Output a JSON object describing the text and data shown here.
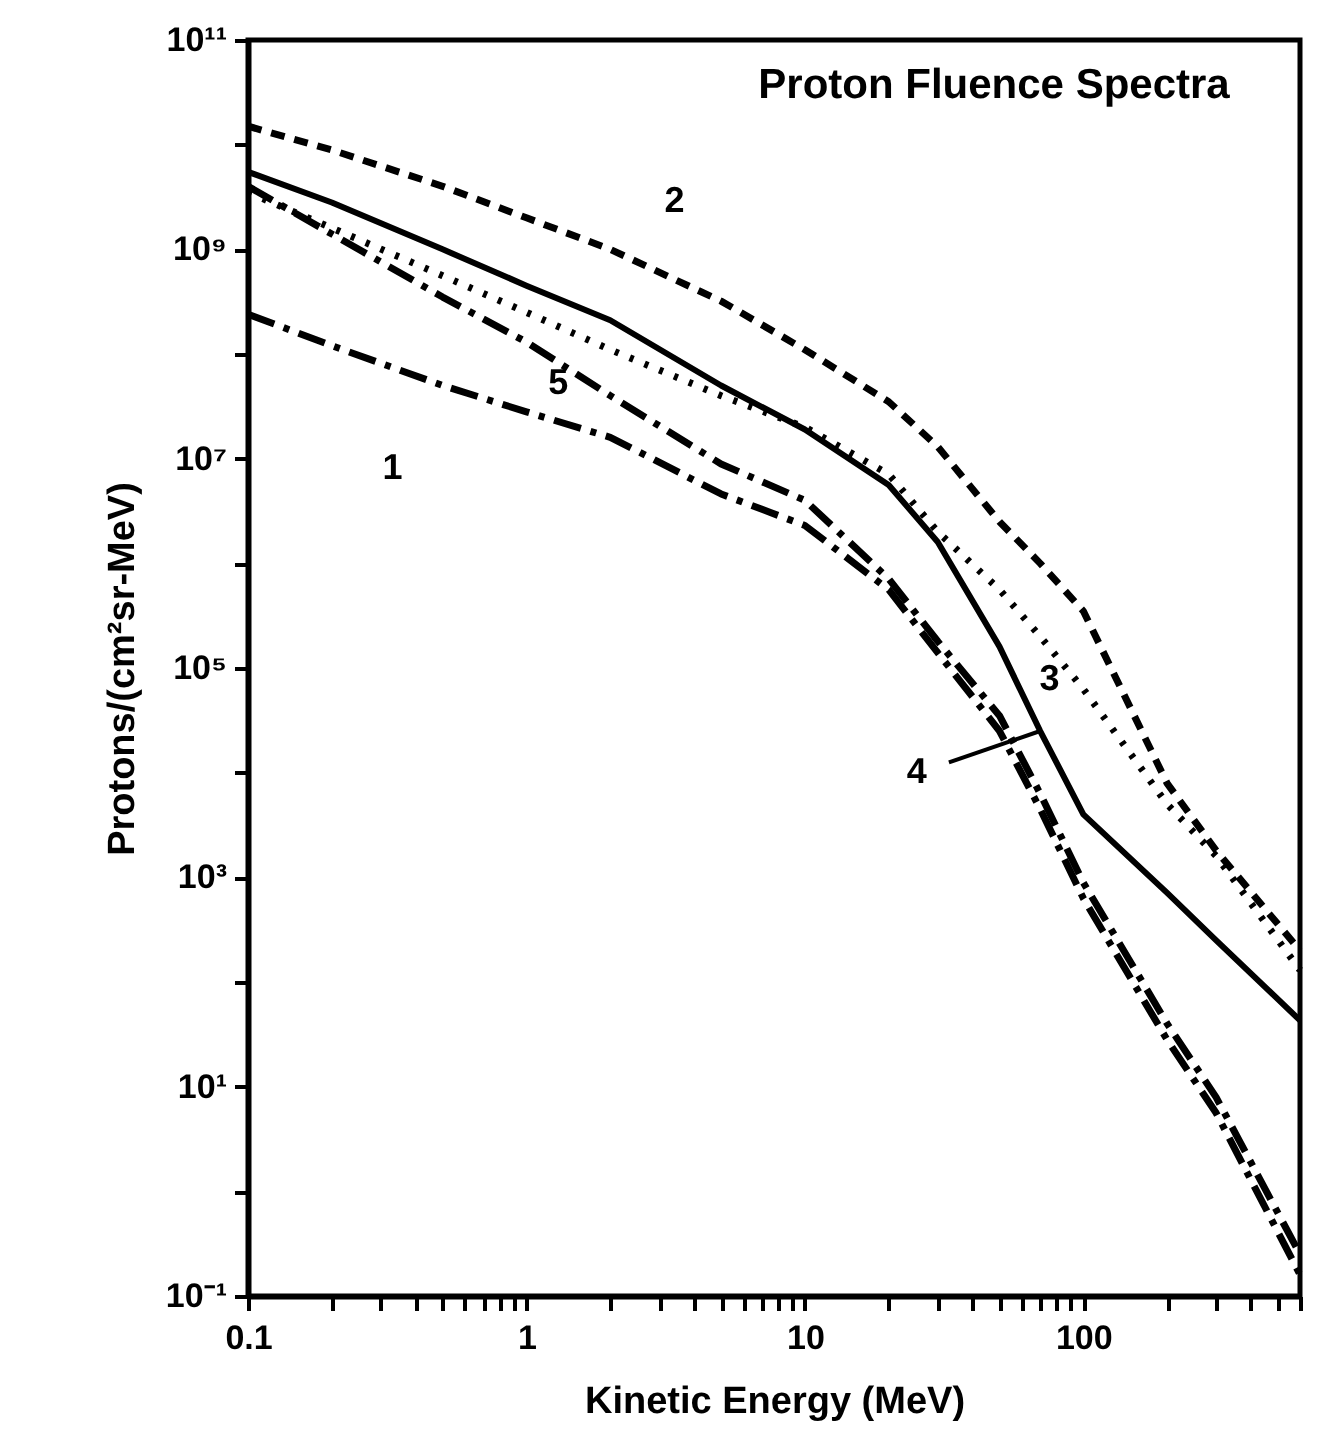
{
  "chart_data": {
    "type": "line",
    "title": "Proton Fluence Spectra",
    "xlabel": "Kinetic Energy (MeV)",
    "ylabel": "Protons/(cm²sr-MeV)",
    "x": [
      0.1,
      0.2,
      0.5,
      1,
      2,
      5,
      10,
      20,
      30,
      50,
      70,
      100,
      200,
      300,
      600
    ],
    "series": [
      {
        "name": "1",
        "color": "#000000",
        "line_style": "dashdot",
        "values": [
          240000000.0,
          120000000.0,
          50000000.0,
          28000000.0,
          16000000.0,
          4600000.0,
          2300000.0,
          560000.0,
          140000.0,
          25000.0,
          4500.0,
          630.0,
          28,
          5.6,
          0.16
        ]
      },
      {
        "name": "2",
        "color": "#000000",
        "line_style": "dashed",
        "values": [
          15000000000.0,
          8900000000.0,
          4000000000.0,
          2000000000.0,
          1000000000.0,
          320000000.0,
          110000000.0,
          35000000.0,
          13000000.0,
          2500000.0,
          1000000.0,
          350000.0,
          7900.0,
          1800.0,
          200.0
        ]
      },
      {
        "name": "3",
        "color": "#000000",
        "line_style": "dotted",
        "values": [
          3500000000.0,
          1600000000.0,
          560000000.0,
          250000000.0,
          110000000.0,
          40000000.0,
          20000000.0,
          7100000.0,
          2000000.0,
          560000.0,
          200000.0,
          63000.0,
          5000.0,
          1600.0,
          130.0
        ]
      },
      {
        "name": "4",
        "color": "#000000",
        "line_style": "solid",
        "values": [
          5500000000.0,
          2800000000.0,
          1000000000.0,
          450000000.0,
          210000000.0,
          50000000.0,
          19000000.0,
          5600000.0,
          1600000.0,
          160000.0,
          25000.0,
          4000.0,
          710.0,
          250.0,
          43
        ]
      },
      {
        "name": "5",
        "color": "#000000",
        "line_style": "dashdot",
        "values": [
          4000000000.0,
          1400000000.0,
          350000000.0,
          130000000.0,
          40000000.0,
          8900000.0,
          4000000.0,
          710000.0,
          180000.0,
          35000.0,
          6300.0,
          890.0,
          40,
          7.9,
          0.25
        ]
      }
    ],
    "log": "xy",
    "grid": false,
    "marker": "none",
    "xlim": [
      0.1,
      600
    ],
    "xticks": [
      0.1,
      {
        "value": 0.2,
        "label": null
      },
      {
        "value": 0.3,
        "label": null
      },
      {
        "value": 0.4,
        "label": null
      },
      {
        "value": 0.5,
        "label": null
      },
      {
        "value": 0.6,
        "label": null
      },
      {
        "value": 0.7,
        "label": null
      },
      {
        "value": 0.8,
        "label": null
      },
      {
        "value": 0.9,
        "label": null
      },
      1,
      {
        "value": 2,
        "label": null
      },
      {
        "value": 3,
        "label": null
      },
      {
        "value": 4,
        "label": null
      },
      {
        "value": 5,
        "label": null
      },
      {
        "value": 6,
        "label": null
      },
      {
        "value": 7,
        "label": null
      },
      {
        "value": 8,
        "label": null
      },
      {
        "value": 9,
        "label": null
      },
      10,
      {
        "value": 20,
        "label": null
      },
      {
        "value": 30,
        "label": null
      },
      {
        "value": 40,
        "label": null
      },
      {
        "value": 50,
        "label": null
      },
      {
        "value": 60,
        "label": null
      },
      {
        "value": 70,
        "label": null
      },
      {
        "value": 80,
        "label": null
      },
      {
        "value": 90,
        "label": null
      },
      100,
      {
        "value": 200,
        "label": null
      },
      {
        "value": 300,
        "label": null
      },
      {
        "value": 400,
        "label": null
      },
      {
        "value": 500,
        "label": null
      },
      {
        "value": 600,
        "label": null
      }
    ],
    "ylim": [
      0.1,
      100000000000.0
    ],
    "yticks": [
      {
        "value": 0.1,
        "label": "10⁻¹"
      },
      {
        "value": 1,
        "label": null
      },
      {
        "value": 10,
        "label": "10¹"
      },
      {
        "value": 100,
        "label": null
      },
      {
        "value": 1000,
        "label": "10³"
      },
      {
        "value": 10000,
        "label": null
      },
      {
        "value": 100000,
        "label": "10⁵"
      },
      {
        "value": 1000000,
        "label": null
      },
      {
        "value": 10000000,
        "label": "10⁷"
      },
      {
        "value": 100000000,
        "label": null
      },
      {
        "value": 1000000000,
        "label": "10⁹"
      },
      {
        "value": 10000000000,
        "label": null
      },
      {
        "value": 100000000000,
        "label": "10¹¹"
      }
    ]
  }
}
